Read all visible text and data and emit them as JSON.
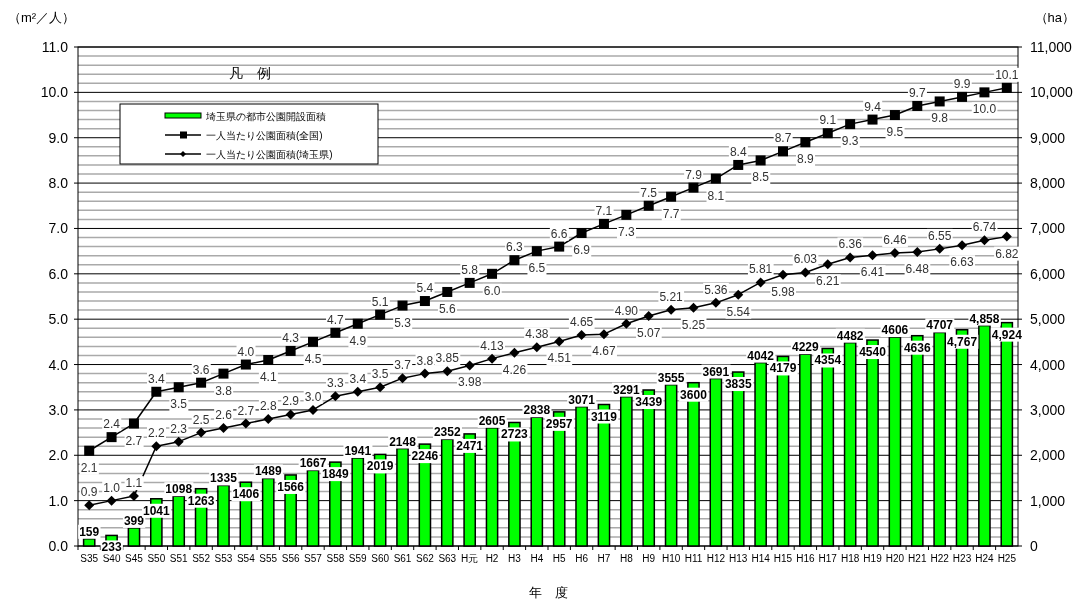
{
  "chart_data": {
    "type": "bar",
    "xlabel": "年　度",
    "ylabel": "（m²／人）",
    "y2label": "（ha）",
    "legend_title": "凡　例",
    "legend": "top left",
    "grid": "y",
    "categories": [
      "S35",
      "S40",
      "S45",
      "S50",
      "S51",
      "S52",
      "S53",
      "S54",
      "S55",
      "S56",
      "S57",
      "S58",
      "S59",
      "S60",
      "S61",
      "S62",
      "S63",
      "H元",
      "H2",
      "H3",
      "H4",
      "H5",
      "H6",
      "H7",
      "H8",
      "H9",
      "H10",
      "H11",
      "H12",
      "H13",
      "H14",
      "H15",
      "H16",
      "H17",
      "H18",
      "H19",
      "H20",
      "H21",
      "H22",
      "H23",
      "H24",
      "H25"
    ],
    "ylim": [
      0,
      11
    ],
    "yticks": [
      {
        "value": 0,
        "label": "0.0"
      },
      {
        "value": 1,
        "label": "1.0"
      },
      {
        "value": 2,
        "label": "2.0"
      },
      {
        "value": 3,
        "label": "3.0"
      },
      {
        "value": 4,
        "label": "4.0"
      },
      {
        "value": 5,
        "label": "5.0"
      },
      {
        "value": 6,
        "label": "6.0"
      },
      {
        "value": 7,
        "label": "7.0"
      },
      {
        "value": 8,
        "label": "8.0"
      },
      {
        "value": 9,
        "label": "9.0"
      },
      {
        "value": 10,
        "label": "10.0"
      },
      {
        "value": 11,
        "label": "11.0"
      }
    ],
    "y2lim": [
      0,
      11000
    ],
    "y2ticks": [
      0,
      {
        "value": 1000,
        "label": "1,000"
      },
      {
        "value": 2000,
        "label": "2,000"
      },
      {
        "value": 3000,
        "label": "3,000"
      },
      {
        "value": 4000,
        "label": "4,000"
      },
      {
        "value": 5000,
        "label": "5,000"
      },
      {
        "value": 6000,
        "label": "6,000"
      },
      {
        "value": 7000,
        "label": "7,000"
      },
      {
        "value": 8000,
        "label": "8,000"
      },
      {
        "value": 9000,
        "label": "9,000"
      },
      {
        "value": 10000,
        "label": "10,000"
      },
      {
        "value": 11000,
        "label": "11,000"
      }
    ],
    "series": [
      {
        "name": "埼玉県の都市公園開設面積",
        "axis": "y2",
        "color": "#00ff00",
        "values": [
          159,
          233,
          399,
          1041,
          1098,
          1263,
          1335,
          1406,
          1489,
          1566,
          1667,
          1849,
          1941,
          2019,
          2148,
          2246,
          2352,
          2471,
          2605,
          2723,
          2838,
          2957,
          3071,
          3119,
          3291,
          3439,
          3555,
          3600,
          3691,
          3835,
          4042,
          4179,
          4229,
          4354,
          4482,
          4540,
          4606,
          4636,
          4707,
          4767,
          4858,
          4924
        ],
        "value_labels": [
          "159",
          "233",
          "399",
          "1041",
          "1098",
          "1263",
          "1335",
          "1406",
          "1489",
          "1566",
          "1667",
          "1849",
          "1941",
          "2019",
          "2148",
          "2246",
          "2352",
          "2471",
          "2605",
          "2723",
          "2838",
          "2957",
          "3071",
          "3119",
          "3291",
          "3439",
          "3555",
          "3600",
          "3691",
          "3835",
          "4042",
          "4179",
          "4229",
          "4354",
          "4482",
          "4540",
          "4606",
          "4636",
          "4707",
          "4,767",
          "4,858",
          "4,924"
        ]
      },
      {
        "name": "一人当たり公園面積(全国)",
        "type": "line",
        "marker": "square",
        "color": "#000000",
        "values": [
          2.1,
          2.4,
          2.7,
          3.4,
          3.5,
          3.6,
          3.8,
          4.0,
          4.1,
          4.3,
          4.5,
          4.7,
          4.9,
          5.1,
          5.3,
          5.4,
          5.6,
          5.8,
          6.0,
          6.3,
          6.5,
          6.6,
          6.9,
          7.1,
          7.3,
          7.5,
          7.7,
          7.9,
          8.1,
          8.4,
          8.5,
          8.7,
          8.9,
          9.1,
          9.3,
          9.4,
          9.5,
          9.7,
          9.8,
          9.9,
          10.0,
          10.1
        ],
        "value_labels": [
          "2.1",
          "2.4",
          "2.7",
          "3.4",
          "3.5",
          "3.6",
          "3.8",
          "4.0",
          "4.1",
          "4.3",
          "4.5",
          "4.7",
          "4.9",
          "5.1",
          "5.3",
          "5.4",
          "5.6",
          "5.8",
          "6.0",
          "6.3",
          "6.5",
          "6.6",
          "6.9",
          "7.1",
          "7.3",
          "7.5",
          "7.7",
          "7.9",
          "8.1",
          "8.4",
          "8.5",
          "8.7",
          "8.9",
          "9.1",
          "9.3",
          "9.4",
          "9.5",
          "9.7",
          "9.8",
          "9.9",
          "10.0",
          "10.1"
        ]
      },
      {
        "name": "一人当たり公園面積(埼玉県)",
        "type": "line",
        "marker": "diamond",
        "color": "#000000",
        "values": [
          0.9,
          1.0,
          1.1,
          2.2,
          2.3,
          2.5,
          2.6,
          2.7,
          2.8,
          2.9,
          3.0,
          3.3,
          3.4,
          3.5,
          3.7,
          3.8,
          3.85,
          3.98,
          4.13,
          4.26,
          4.38,
          4.51,
          4.65,
          4.67,
          4.9,
          5.07,
          5.21,
          5.25,
          5.36,
          5.54,
          5.81,
          5.98,
          6.03,
          6.21,
          6.36,
          6.41,
          6.46,
          6.48,
          6.55,
          6.63,
          6.74,
          6.82
        ],
        "value_labels": [
          "0.9",
          "1.0",
          "1.1",
          "2.2",
          "2.3",
          "2.5",
          "2.6",
          "2.7",
          "2.8",
          "2.9",
          "3.0",
          "3.3",
          "3.4",
          "3.5",
          "3.7",
          "3.8",
          "3.85",
          "3.98",
          "4.13",
          "4.26",
          "4.38",
          "4.51",
          "4.65",
          "4.67",
          "4.90",
          "5.07",
          "5.21",
          "5.25",
          "5.36",
          "5.54",
          "5.81",
          "5.98",
          "6.03",
          "6.21",
          "6.36",
          "6.41",
          "6.46",
          "6.48",
          "6.55",
          "6.63",
          "6.74",
          "6.82"
        ]
      }
    ]
  }
}
